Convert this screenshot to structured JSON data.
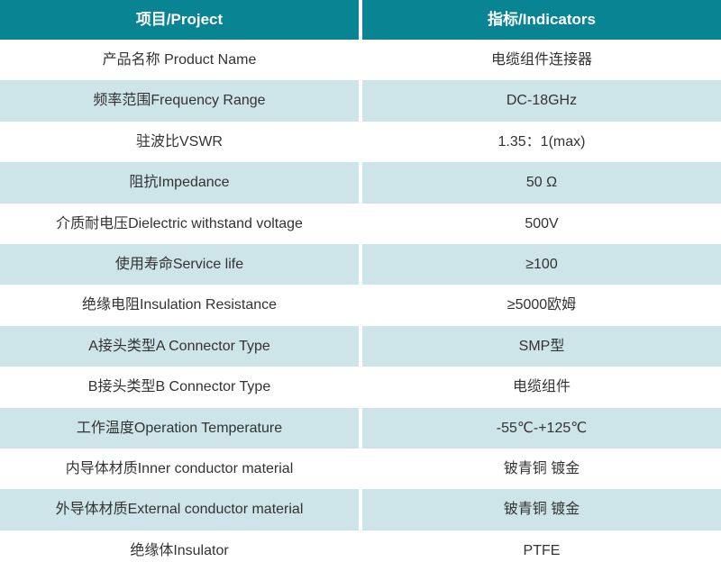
{
  "colors": {
    "header_bg": "#088492",
    "alt_row_bg": "#cde4e9",
    "header_text": "#ffffff",
    "body_text": "#333333",
    "divider": "#ffffff"
  },
  "table": {
    "header": {
      "project": "项目/Project",
      "indicators": "指标/Indicators"
    },
    "rows": [
      {
        "project": "产品名称 Product Name",
        "indicator": "电缆组件连接器"
      },
      {
        "project": "频率范围Frequency Range",
        "indicator": "DC-18GHz"
      },
      {
        "project": "驻波比VSWR",
        "indicator": "1.35：1(max)"
      },
      {
        "project": "阻抗Impedance",
        "indicator": "50 Ω"
      },
      {
        "project": "介质耐电压Dielectric withstand voltage",
        "indicator": "500V"
      },
      {
        "project": "使用寿命Service life",
        "indicator": "≥100"
      },
      {
        "project": "绝缘电阻Insulation Resistance",
        "indicator": "≥5000欧姆"
      },
      {
        "project": "A接头类型A Connector Type",
        "indicator": "SMP型"
      },
      {
        "project": "B接头类型B Connector Type",
        "indicator": "电缆组件"
      },
      {
        "project": "工作温度Operation Temperature",
        "indicator": "-55℃-+125℃"
      },
      {
        "project": "内导体材质Inner conductor material",
        "indicator": "铍青铜 镀金"
      },
      {
        "project": "外导体材质External conductor material",
        "indicator": "铍青铜 镀金"
      },
      {
        "project": "绝缘体Insulator",
        "indicator": "PTFE"
      }
    ]
  }
}
